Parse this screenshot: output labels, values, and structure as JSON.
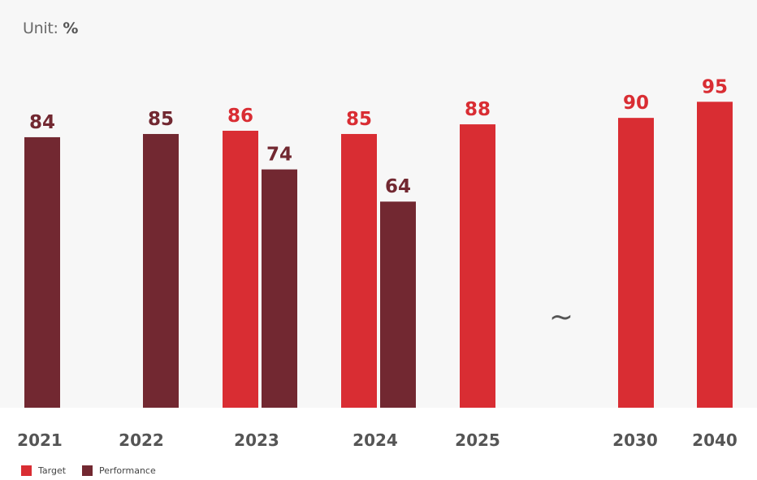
{
  "unit": {
    "prefix": "Unit:",
    "value": "%"
  },
  "colors": {
    "target": "#d92d33",
    "performance": "#722831"
  },
  "legend": [
    {
      "label": "Target",
      "color": "#d92d33"
    },
    {
      "label": "Performance",
      "color": "#722831"
    }
  ],
  "break_symbol": "~",
  "chart_data": {
    "type": "bar",
    "categories": [
      "2021",
      "2022",
      "2023",
      "2024",
      "2025",
      "2030",
      "2040"
    ],
    "series": [
      {
        "name": "Target",
        "values": [
          null,
          null,
          86,
          85,
          88,
          90,
          95
        ]
      },
      {
        "name": "Performance",
        "values": [
          84,
          85,
          74,
          64,
          null,
          null,
          null
        ]
      }
    ],
    "ylim": [
      0,
      100
    ],
    "title": "",
    "xlabel": "",
    "ylabel": "",
    "grid": false,
    "legend_position": "bottom-left"
  }
}
